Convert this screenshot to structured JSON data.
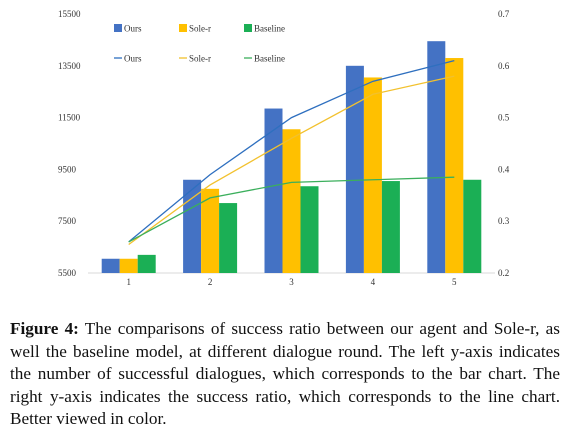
{
  "chart_data": {
    "type": "bar+line",
    "categories": [
      "1",
      "2",
      "3",
      "4",
      "5"
    ],
    "bar_axis": {
      "side": "left",
      "ylim": [
        5500,
        15500
      ],
      "ticks": [
        5500,
        7500,
        9500,
        11500,
        13500,
        15500
      ]
    },
    "line_axis": {
      "side": "right",
      "ylim": [
        0.2,
        0.7
      ],
      "ticks": [
        "0.2",
        "0.3",
        "0.4",
        "0.5",
        "0.6",
        "0.7"
      ]
    },
    "bar_series": [
      {
        "name": "Ours",
        "color": "#4472C4",
        "values": [
          6050,
          9100,
          11850,
          13500,
          14450
        ]
      },
      {
        "name": "Sole-r",
        "color": "#FFC000",
        "values": [
          6050,
          8750,
          11050,
          13050,
          13800
        ]
      },
      {
        "name": "Baseline",
        "color": "#1BAF55",
        "values": [
          6200,
          8200,
          8850,
          9050,
          9100
        ]
      }
    ],
    "line_series": [
      {
        "name": "Ours",
        "color": "#2E6FBF",
        "values": [
          0.26,
          0.39,
          0.5,
          0.57,
          0.61
        ]
      },
      {
        "name": "Sole-r",
        "color": "#F2C12E",
        "values": [
          0.255,
          0.37,
          0.46,
          0.545,
          0.58
        ]
      },
      {
        "name": "Baseline",
        "color": "#3BAF5C",
        "values": [
          0.26,
          0.345,
          0.375,
          0.38,
          0.385
        ]
      }
    ],
    "grid": false,
    "legend": "top-left"
  },
  "caption": {
    "label": "Figure 4:",
    "text": " The comparisons of success ratio between our agent and Sole-r, as well the baseline model, at different dialogue round. The left y-axis indicates the number of successful dialogues, which corresponds to the bar chart. The right y-axis indicates the success ratio, which corresponds to the line chart. Better viewed in color."
  }
}
